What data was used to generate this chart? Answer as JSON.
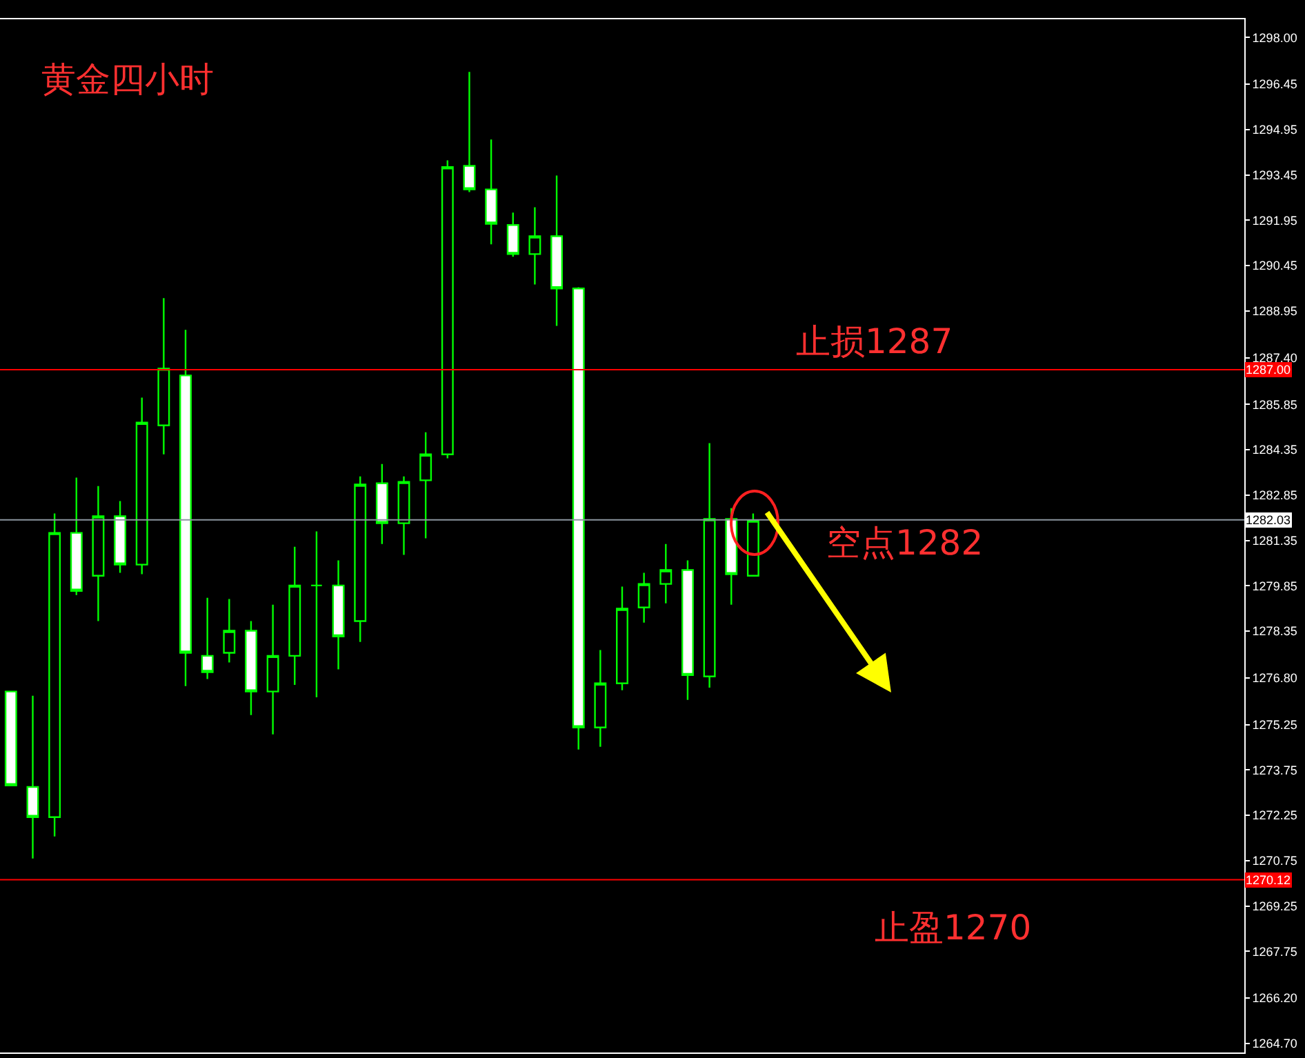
{
  "chart_data": {
    "type": "candlestick",
    "title": "黄金四小时",
    "annotations": [
      "止损1287",
      "空点1282",
      "止盈1270"
    ],
    "categories": [
      null,
      null,
      null,
      null,
      null,
      null,
      null,
      null,
      null,
      null,
      null,
      null,
      null,
      null,
      null,
      null,
      null,
      null,
      null,
      null,
      null,
      null,
      null,
      null,
      null,
      null,
      null,
      null,
      null,
      null,
      null,
      null,
      null,
      null,
      null,
      null,
      null,
      null,
      null,
      null,
      null,
      null,
      null,
      null,
      null,
      null,
      null,
      null,
      null,
      null,
      null,
      null,
      null,
      null,
      null,
      null,
      null
    ],
    "color": "#00ff00",
    "ohlc": [
      [
        1276.35,
        1276.35,
        1273.24,
        1273.24
      ],
      [
        1273.19,
        1276.21,
        1270.82,
        1272.19
      ],
      [
        1272.19,
        1282.24,
        1271.55,
        1281.6
      ],
      [
        1281.6,
        1283.43,
        1279.54,
        1279.68
      ],
      [
        1280.18,
        1283.15,
        1278.68,
        1282.15
      ],
      [
        1282.15,
        1282.65,
        1280.28,
        1280.55
      ],
      [
        1280.55,
        1286.08,
        1280.23,
        1285.25
      ],
      [
        1285.16,
        1289.37,
        1284.2,
        1287.04
      ],
      [
        1286.81,
        1288.32,
        1276.53,
        1277.63
      ],
      [
        1277.53,
        1279.45,
        1276.76,
        1276.99
      ],
      [
        1277.63,
        1279.41,
        1277.31,
        1278.36
      ],
      [
        1278.36,
        1278.68,
        1275.57,
        1276.35
      ],
      [
        1276.35,
        1279.22,
        1274.93,
        1277.53
      ],
      [
        1277.53,
        1281.14,
        1276.57,
        1279.86
      ],
      [
        1279.86,
        1281.65,
        1276.16,
        1279.86
      ],
      [
        1279.86,
        1280.69,
        1277.08,
        1278.17
      ],
      [
        1278.68,
        1283.47,
        1277.99,
        1283.2
      ],
      [
        1283.24,
        1283.88,
        1281.23,
        1281.92
      ],
      [
        1281.92,
        1283.47,
        1280.87,
        1283.29
      ],
      [
        1283.34,
        1284.93,
        1281.42,
        1284.2
      ],
      [
        1284.2,
        1293.93,
        1284.07,
        1293.71
      ],
      [
        1293.75,
        1296.86,
        1292.88,
        1292.97
      ],
      [
        1292.97,
        1294.62,
        1291.15,
        1291.83
      ],
      [
        1291.79,
        1292.2,
        1290.74,
        1290.83
      ],
      [
        1290.83,
        1292.38,
        1289.82,
        1291.42
      ],
      [
        1291.42,
        1293.43,
        1288.45,
        1289.69
      ],
      [
        1289.69,
        1289.73,
        1274.43,
        1275.16
      ],
      [
        1275.16,
        1277.72,
        1274.52,
        1276.62
      ],
      [
        1276.62,
        1279.82,
        1276.39,
        1279.09
      ],
      [
        1279.13,
        1280.28,
        1278.63,
        1279.91
      ],
      [
        1279.91,
        1281.23,
        1279.27,
        1280.37
      ],
      [
        1280.37,
        1280.69,
        1276.07,
        1276.89
      ],
      [
        1276.85,
        1284.57,
        1276.48,
        1282.06
      ],
      [
        1282.06,
        1282.42,
        1279.22,
        1280.23
      ],
      [
        1280.18,
        1282.24,
        1280.18,
        1282.01
      ],
      null,
      null,
      null,
      null,
      null,
      null,
      null,
      null,
      null,
      null,
      null,
      null,
      null,
      null,
      null,
      null,
      null,
      null,
      null,
      null,
      null,
      null
    ],
    "ylim": [
      1264.4,
      1298.6
    ],
    "yticks": [
      {
        "value": 1298,
        "label": "1298.00"
      },
      {
        "value": 1296.45,
        "label": "1296.45"
      },
      {
        "value": 1294.95,
        "label": "1294.95"
      },
      {
        "value": 1293.45,
        "label": "1293.45"
      },
      {
        "value": 1291.95,
        "label": "1291.95"
      },
      {
        "value": 1290.45,
        "label": "1290.45"
      },
      {
        "value": 1288.95,
        "label": "1288.95"
      },
      {
        "value": 1287.4,
        "label": "1287.40"
      },
      {
        "value": 1285.85,
        "label": "1285.85"
      },
      {
        "value": 1284.35,
        "label": "1284.35"
      },
      {
        "value": 1282.85,
        "label": "1282.85"
      },
      {
        "value": 1281.35,
        "label": "1281.35"
      },
      {
        "value": 1279.85,
        "label": "1279.85"
      },
      {
        "value": 1278.35,
        "label": "1278.35"
      },
      {
        "value": 1276.8,
        "label": "1276.80"
      },
      {
        "value": 1275.25,
        "label": "1275.25"
      },
      {
        "value": 1273.75,
        "label": "1273.75"
      },
      {
        "value": 1272.25,
        "label": "1272.25"
      },
      {
        "value": 1270.75,
        "label": "1270.75"
      },
      {
        "value": 1269.25,
        "label": "1269.25"
      },
      {
        "value": 1267.75,
        "label": "1267.75"
      },
      {
        "value": 1266.2,
        "label": "1266.20"
      },
      {
        "value": 1264.7,
        "label": "1264.70"
      }
    ],
    "ref_lines": [
      {
        "axis": "y",
        "value": 1287.0,
        "label": "1287.00",
        "color": "#ff0000"
      },
      {
        "axis": "y",
        "value": 1282.03,
        "label": "1282.03",
        "color": "#8c96a0"
      },
      {
        "axis": "y",
        "value": 1270.12,
        "label": "1270.12",
        "color": "#ff0000"
      }
    ],
    "tick_labels": "y",
    "grid": false,
    "legend": false
  }
}
